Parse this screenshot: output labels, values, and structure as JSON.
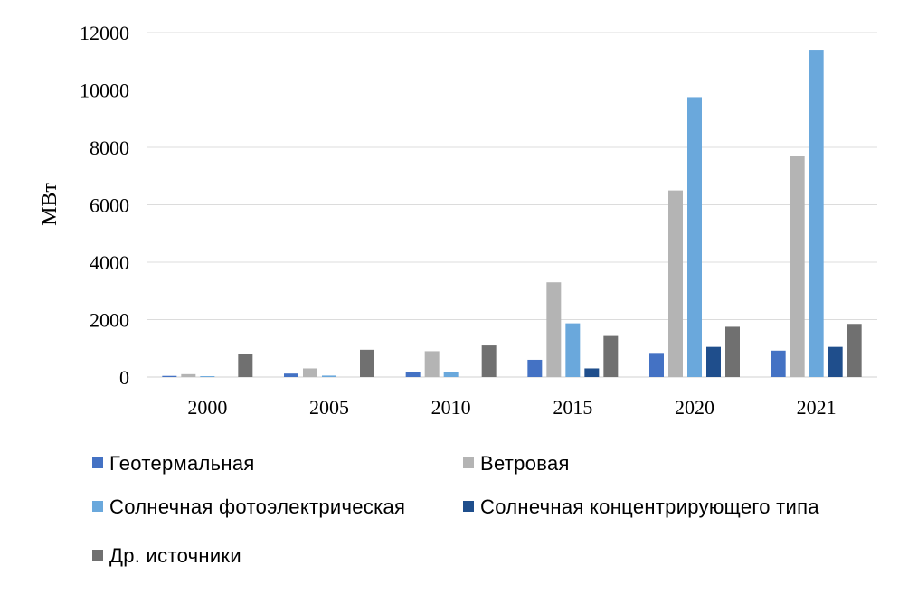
{
  "chart_data": {
    "type": "bar",
    "title": "",
    "xlabel": "",
    "ylabel": "МВт",
    "ylim": [
      0,
      12000
    ],
    "yticks": [
      0,
      2000,
      4000,
      6000,
      8000,
      10000,
      12000
    ],
    "grid": true,
    "legend_position": "bottom",
    "categories": [
      "2000",
      "2005",
      "2010",
      "2015",
      "2020",
      "2021"
    ],
    "series": [
      {
        "name": "Геотермальная",
        "color": "#4472c4",
        "values": [
          40,
          120,
          170,
          600,
          840,
          920
        ]
      },
      {
        "name": "Ветровая",
        "color": "#b4b4b4",
        "values": [
          100,
          300,
          900,
          3300,
          6500,
          7700
        ]
      },
      {
        "name": "Солнечная фотоэлектрическая",
        "color": "#6aa8dc",
        "values": [
          30,
          50,
          180,
          1870,
          9750,
          11400
        ]
      },
      {
        "name": "Солнечная концентрирующего типа",
        "color": "#1f4e8c",
        "values": [
          0,
          0,
          0,
          300,
          1050,
          1050
        ]
      },
      {
        "name": "Др. источники",
        "color": "#707070",
        "values": [
          800,
          950,
          1100,
          1430,
          1750,
          1850
        ]
      }
    ]
  }
}
